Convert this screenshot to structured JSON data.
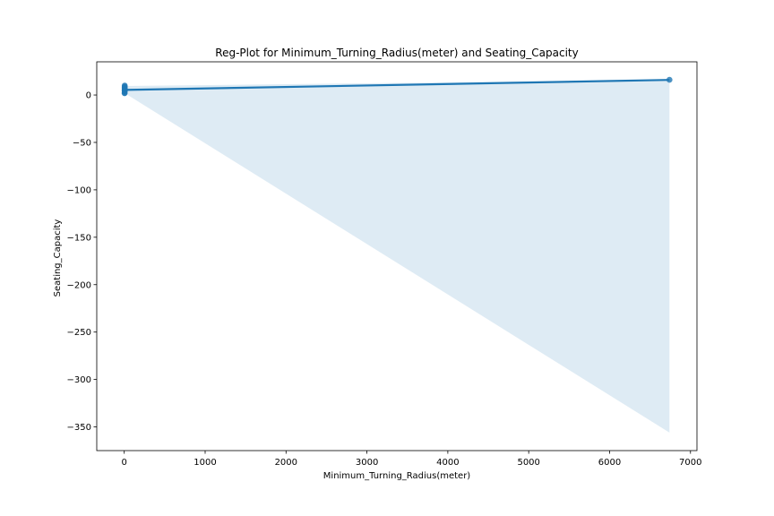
{
  "chart_data": {
    "type": "scatter",
    "title": "Reg-Plot for Minimum_Turning_Radius(meter) and Seating_Capacity",
    "xlabel": "Minimum_Turning_Radius(meter)",
    "ylabel": "Seating_Capacity",
    "xlim": [
      -340,
      7080
    ],
    "ylim": [
      -375,
      35
    ],
    "xticks": [
      0,
      1000,
      2000,
      3000,
      4000,
      5000,
      6000,
      7000
    ],
    "xtick_labels": [
      "0",
      "1000",
      "2000",
      "3000",
      "4000",
      "5000",
      "6000",
      "7000"
    ],
    "yticks": [
      0,
      -50,
      -100,
      -150,
      -200,
      -250,
      -300,
      -350
    ],
    "ytick_labels": [
      "0",
      "−50",
      "−100",
      "−150",
      "−200",
      "−250",
      "−300",
      "−350"
    ],
    "grid": false,
    "points": [
      {
        "x": 4.5,
        "y": 2
      },
      {
        "x": 4.8,
        "y": 2
      },
      {
        "x": 5.0,
        "y": 4
      },
      {
        "x": 5.2,
        "y": 4
      },
      {
        "x": 5.0,
        "y": 5
      },
      {
        "x": 5.3,
        "y": 5
      },
      {
        "x": 5.5,
        "y": 5
      },
      {
        "x": 5.1,
        "y": 6
      },
      {
        "x": 5.6,
        "y": 7
      },
      {
        "x": 5.4,
        "y": 8
      },
      {
        "x": 5.8,
        "y": 9
      },
      {
        "x": 6.0,
        "y": 10
      },
      {
        "x": 6740,
        "y": 16
      }
    ],
    "regression_line": {
      "x": [
        4.5,
        6740
      ],
      "y": [
        5.3,
        15.9
      ]
    },
    "confidence_band": {
      "x": [
        4.5,
        6740
      ],
      "upper": [
        9.5,
        15.9
      ],
      "lower": [
        2.0,
        -356
      ]
    },
    "colors": {
      "points": "#1f77b4",
      "line": "#1f77b4",
      "band": "#1f77b4"
    }
  }
}
